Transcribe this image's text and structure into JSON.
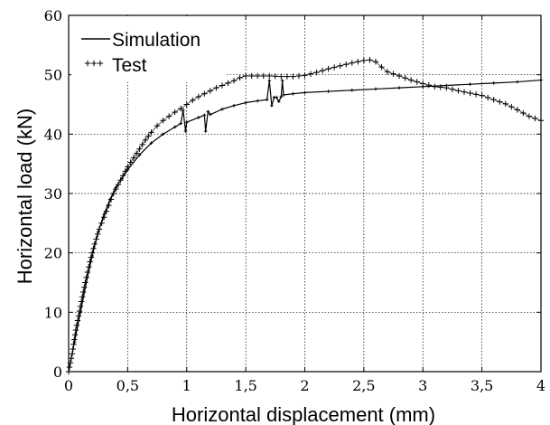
{
  "chart_data": {
    "type": "line",
    "xlabel": "Horizontal displacement (mm)",
    "ylabel": "Horizontal load (kN)",
    "xlim": [
      0,
      4
    ],
    "ylim": [
      0,
      60
    ],
    "xticks": [
      0,
      0.5,
      1,
      1.5,
      2,
      2.5,
      3,
      3.5,
      4
    ],
    "xtick_labels": [
      "0",
      "0,5",
      "1",
      "1,5",
      "2",
      "2,5",
      "3",
      "3,5",
      "4"
    ],
    "yticks": [
      0,
      10,
      20,
      30,
      40,
      50,
      60
    ],
    "ytick_labels": [
      "0",
      "10",
      "20",
      "30",
      "40",
      "50",
      "60"
    ],
    "grid": true,
    "legend_position": "top-left",
    "series": [
      {
        "name": "Simulation",
        "style": "solid",
        "color": "#000000",
        "x": [
          0,
          0.05,
          0.1,
          0.15,
          0.2,
          0.25,
          0.3,
          0.35,
          0.4,
          0.45,
          0.5,
          0.6,
          0.7,
          0.8,
          0.9,
          0.95,
          0.97,
          0.99,
          1.0,
          1.1,
          1.15,
          1.16,
          1.18,
          1.2,
          1.3,
          1.4,
          1.5,
          1.6,
          1.68,
          1.7,
          1.72,
          1.74,
          1.76,
          1.78,
          1.8,
          1.81,
          1.82,
          1.9,
          2.0,
          2.2,
          2.4,
          2.6,
          2.8,
          3.0,
          3.2,
          3.4,
          3.6,
          3.8,
          4.0
        ],
        "y": [
          0,
          5,
          10,
          15,
          19.5,
          23.5,
          26.5,
          29,
          31,
          32.5,
          34,
          36.5,
          38.5,
          40,
          41.2,
          41.8,
          44,
          40.5,
          42,
          42.8,
          43.2,
          40.5,
          43.8,
          43.3,
          44.2,
          44.8,
          45.3,
          45.6,
          45.8,
          49,
          44.8,
          46.2,
          46.2,
          45.5,
          46.3,
          49,
          46.6,
          46.8,
          47,
          47.2,
          47.4,
          47.6,
          47.8,
          48,
          48.2,
          48.4,
          48.6,
          48.8,
          49.1
        ]
      },
      {
        "name": "Test",
        "style": "plus-markers",
        "color": "#000000",
        "x": [
          0,
          0.03,
          0.06,
          0.1,
          0.14,
          0.18,
          0.22,
          0.26,
          0.3,
          0.34,
          0.38,
          0.42,
          0.46,
          0.5,
          0.55,
          0.6,
          0.65,
          0.7,
          0.75,
          0.8,
          0.85,
          0.9,
          0.95,
          1.0,
          1.05,
          1.1,
          1.15,
          1.2,
          1.25,
          1.3,
          1.35,
          1.4,
          1.45,
          1.5,
          1.6,
          1.7,
          1.8,
          1.9,
          2.0,
          2.1,
          2.2,
          2.3,
          2.4,
          2.5,
          2.55,
          2.6,
          2.65,
          2.7,
          2.8,
          2.9,
          3.0,
          3.1,
          3.2,
          3.3,
          3.4,
          3.5,
          3.6,
          3.7,
          3.8,
          3.9,
          4.0
        ],
        "y": [
          0,
          3,
          7,
          11,
          15,
          18.5,
          21.5,
          24,
          26,
          28,
          30,
          31.5,
          33,
          34.5,
          36,
          37.5,
          39,
          40.3,
          41.4,
          42.3,
          43,
          43.7,
          44.3,
          45,
          45.7,
          46.3,
          46.8,
          47.3,
          47.8,
          48.2,
          48.6,
          49,
          49.5,
          49.8,
          49.8,
          49.8,
          49.7,
          49.7,
          49.9,
          50.4,
          51,
          51.5,
          52,
          52.4,
          52.5,
          52.2,
          51.3,
          50.5,
          49.8,
          49.1,
          48.5,
          48,
          47.8,
          47.3,
          46.9,
          46.5,
          45.8,
          45.1,
          44.1,
          43,
          42.3
        ]
      }
    ]
  }
}
